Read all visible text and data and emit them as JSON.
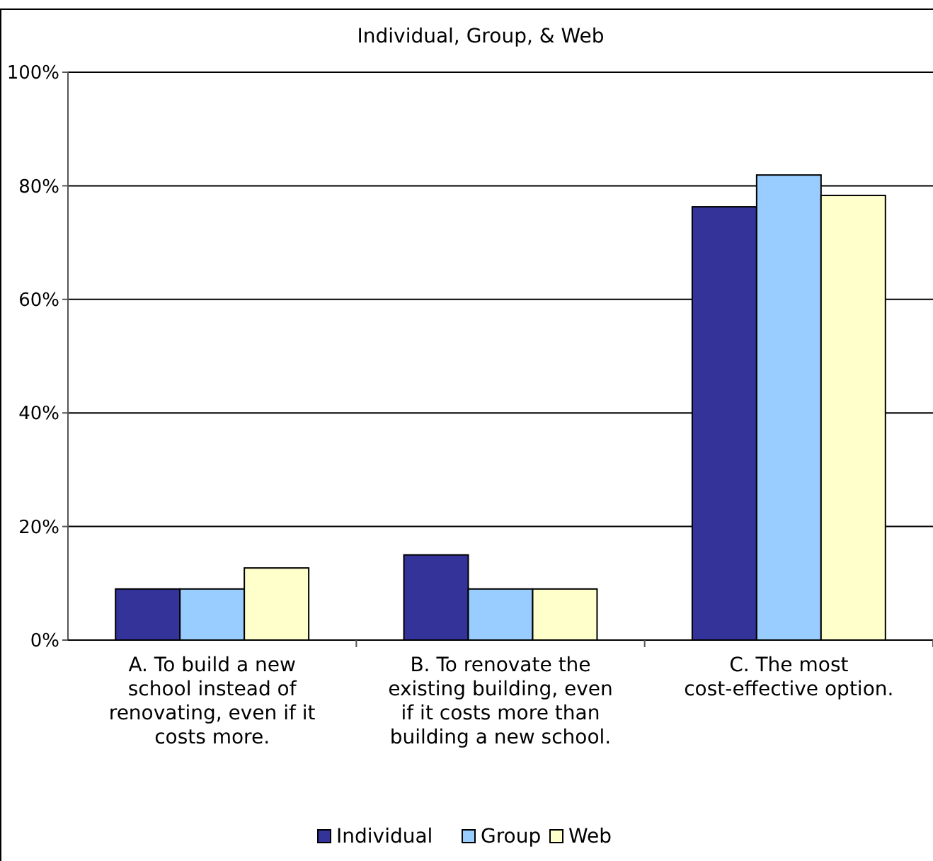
{
  "chart_data": {
    "type": "bar",
    "title": "Individual, Group, & Web",
    "categories": [
      "A.  To build a new school instead of renovating, even if it costs more.",
      "B.  To renovate the existing building, even if it costs more than building a new school.",
      "C.  The most cost-effective option."
    ],
    "series": [
      {
        "name": "Individual",
        "color": "#333399",
        "values": [
          9,
          15,
          76.3
        ]
      },
      {
        "name": "Group",
        "color": "#99ccff",
        "values": [
          9,
          9,
          81.9
        ]
      },
      {
        "name": "Web",
        "color": "#ffffcc",
        "values": [
          12.7,
          9,
          78.3
        ]
      }
    ],
    "ylim": [
      0,
      100
    ],
    "yticks": [
      {
        "value": 0,
        "label": "0%"
      },
      {
        "value": 20,
        "label": "20%"
      },
      {
        "value": 40,
        "label": "40%"
      },
      {
        "value": 60,
        "label": "60%"
      },
      {
        "value": 80,
        "label": "80%"
      },
      {
        "value": 100,
        "label": "100%"
      }
    ],
    "grid": "y",
    "legend": "bottom"
  }
}
